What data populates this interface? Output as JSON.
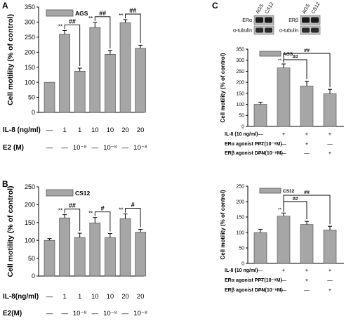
{
  "chart_data": [
    {
      "panel": "A",
      "type": "bar",
      "legend": "AGS",
      "ylabel": "Cell motility (% of control)",
      "ylim": [
        0,
        350
      ],
      "yticks": [
        "0",
        "50",
        "100",
        "150",
        "200",
        "250",
        "300",
        "350"
      ],
      "values": [
        100,
        260,
        137,
        282,
        193,
        298,
        213
      ],
      "errors": [
        0,
        12,
        10,
        17,
        13,
        10,
        10
      ],
      "conditions": [
        {
          "label": "IL-8 (ng/ml)",
          "values": [
            "—",
            "1",
            "1",
            "10",
            "10",
            "20",
            "20"
          ]
        },
        {
          "label": "E2 (M)",
          "values": [
            "—",
            "—",
            "10⁻⁸",
            "—",
            "10⁻⁸",
            "—",
            "10⁻⁸"
          ]
        }
      ],
      "annotations": [
        {
          "bar": 1,
          "text": "**"
        },
        {
          "bar": 3,
          "text": "**"
        },
        {
          "bar": 5,
          "text": "**"
        }
      ],
      "brackets": [
        {
          "from": 1,
          "to": 2,
          "text": "##"
        },
        {
          "from": 3,
          "to": 4,
          "text": "##"
        },
        {
          "from": 5,
          "to": 6,
          "text": "##"
        }
      ]
    },
    {
      "panel": "B",
      "type": "bar",
      "legend": "CS12",
      "ylabel": "Cell motility (% of control)",
      "ylim": [
        0,
        250
      ],
      "yticks": [
        "0",
        "50",
        "100",
        "150",
        "200",
        "250"
      ],
      "values": [
        100,
        163,
        108,
        149,
        108,
        161,
        123
      ],
      "errors": [
        5,
        9,
        12,
        15,
        11,
        13,
        8
      ],
      "conditions": [
        {
          "label": "IL-8(ng/ml)",
          "values": [
            "—",
            "1",
            "1",
            "10",
            "10",
            "20",
            "20"
          ]
        },
        {
          "label": "E2(M)",
          "values": [
            "—",
            "—",
            "10⁻⁸",
            "—",
            "10⁻⁸",
            "—",
            "10⁻⁸"
          ]
        }
      ],
      "annotations": [
        {
          "bar": 1,
          "text": "**"
        },
        {
          "bar": 3,
          "text": "**"
        },
        {
          "bar": 5,
          "text": "**"
        }
      ],
      "brackets": [
        {
          "from": 1,
          "to": 2,
          "text": "##"
        },
        {
          "from": 3,
          "to": 4,
          "text": "#"
        },
        {
          "from": 5,
          "to": 6,
          "text": "#"
        }
      ]
    },
    {
      "panel": "C-top",
      "type": "bar",
      "legend": "AGS",
      "ylabel": "Cell motility (% of control)",
      "ylim": [
        0,
        350
      ],
      "yticks": [
        "0",
        "50",
        "100",
        "150",
        "200",
        "250",
        "300",
        "350"
      ],
      "values": [
        100,
        265,
        183,
        148
      ],
      "errors": [
        10,
        18,
        22,
        20
      ],
      "conditions": [
        {
          "label": "IL-8 (10 ng/ml)",
          "values": [
            "—",
            "+",
            "+",
            "+"
          ]
        },
        {
          "label": "ERα agonist PPT(10⁻⁸M)",
          "values": [
            "—",
            "—",
            "+",
            "—"
          ]
        },
        {
          "label": "ERβ agonist DPN(10⁻⁸M)",
          "values": [
            "—",
            "—",
            "—",
            "+"
          ]
        }
      ],
      "annotations": [
        {
          "bar": 1,
          "text": "**"
        }
      ],
      "brackets": [
        {
          "from": 1,
          "to": 2,
          "text": "##"
        },
        {
          "from": 1,
          "to": 3,
          "text": "##"
        }
      ]
    },
    {
      "panel": "C-bottom",
      "type": "bar",
      "legend": "CS12",
      "ylabel": "Cell motility (% of control)",
      "ylim": [
        0,
        250
      ],
      "yticks": [
        "0",
        "50",
        "100",
        "150",
        "200",
        "250"
      ],
      "values": [
        100,
        153,
        126,
        108
      ],
      "errors": [
        10,
        10,
        10,
        12
      ],
      "conditions": [
        {
          "label": "IL-8 (10 ng/ml)",
          "values": [
            "—",
            "+",
            "+",
            "+"
          ]
        },
        {
          "label": "ERα agonist PPT(10⁻⁸M)",
          "values": [
            "—",
            "—",
            "+",
            "—"
          ]
        },
        {
          "label": "ERβ agonist DPN(10⁻⁸M)",
          "values": [
            "—",
            "—",
            "—",
            "+"
          ]
        }
      ],
      "annotations": [
        {
          "bar": 1,
          "text": "**"
        }
      ],
      "brackets": [
        {
          "from": 1,
          "to": 2,
          "text": "##"
        },
        {
          "from": 1,
          "to": 3,
          "text": "##"
        }
      ]
    }
  ],
  "panel_letters": [
    "A",
    "B",
    "C"
  ],
  "blots": [
    {
      "cells": [
        "AGS",
        "CS12"
      ],
      "target": "ERα",
      "loading": "α-tubulin"
    },
    {
      "cells": [
        "AGS",
        "CS12"
      ],
      "target": "ERβ",
      "loading": "α-tubulin"
    }
  ],
  "colors": {
    "bar": "#a6a6a6",
    "axis": "#000000"
  }
}
